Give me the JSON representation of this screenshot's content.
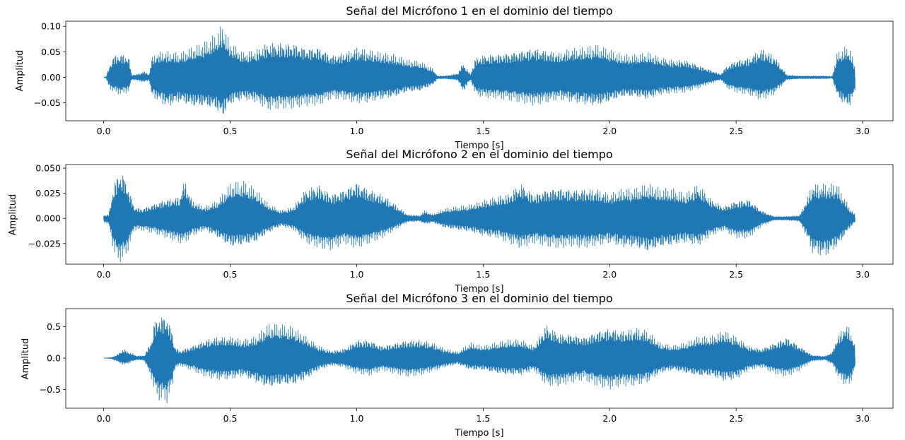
{
  "chart_data": [
    {
      "type": "line",
      "title": "Señal del Micrófono 1 en el dominio del tiempo",
      "xlabel": "Tiempo [s]",
      "ylabel": "Amplitud",
      "xlim": [
        -0.15,
        3.12
      ],
      "ylim": [
        -0.085,
        0.11
      ],
      "xticks": [
        0.0,
        0.5,
        1.0,
        1.5,
        2.0,
        2.5,
        3.0
      ],
      "xtick_labels": [
        "0.0",
        "0.5",
        "1.0",
        "1.5",
        "2.0",
        "2.5",
        "3.0"
      ],
      "yticks": [
        -0.05,
        0.0,
        0.05,
        0.1
      ],
      "ytick_labels": [
        "−0.05",
        "0.00",
        "0.05",
        "0.10"
      ],
      "color": "#1f77b4",
      "x_start": 0.0,
      "x_end": 2.97,
      "envelope": {
        "t": [
          0.0,
          0.01,
          0.02,
          0.04,
          0.07,
          0.1,
          0.11,
          0.13,
          0.16,
          0.18,
          0.19,
          0.21,
          0.25,
          0.3,
          0.35,
          0.4,
          0.44,
          0.47,
          0.5,
          0.55,
          0.6,
          0.65,
          0.7,
          0.75,
          0.8,
          0.85,
          0.9,
          0.95,
          1.0,
          1.05,
          1.1,
          1.15,
          1.2,
          1.25,
          1.3,
          1.32,
          1.35,
          1.4,
          1.42,
          1.45,
          1.47,
          1.5,
          1.55,
          1.6,
          1.65,
          1.7,
          1.75,
          1.8,
          1.85,
          1.9,
          1.95,
          2.0,
          2.05,
          2.1,
          2.15,
          2.2,
          2.25,
          2.3,
          2.35,
          2.4,
          2.44,
          2.46,
          2.5,
          2.55,
          2.6,
          2.65,
          2.7,
          2.75,
          2.8,
          2.85,
          2.88,
          2.9,
          2.93,
          2.95,
          2.97
        ],
        "max": [
          0.0,
          0.002,
          0.02,
          0.045,
          0.048,
          0.042,
          0.005,
          0.006,
          0.012,
          0.006,
          0.04,
          0.05,
          0.052,
          0.048,
          0.06,
          0.07,
          0.085,
          0.105,
          0.07,
          0.05,
          0.055,
          0.07,
          0.07,
          0.07,
          0.06,
          0.062,
          0.045,
          0.05,
          0.06,
          0.055,
          0.05,
          0.045,
          0.035,
          0.032,
          0.018,
          0.003,
          0.003,
          0.008,
          0.03,
          0.006,
          0.04,
          0.045,
          0.048,
          0.05,
          0.055,
          0.06,
          0.055,
          0.05,
          0.058,
          0.06,
          0.065,
          0.055,
          0.045,
          0.045,
          0.05,
          0.04,
          0.035,
          0.035,
          0.025,
          0.015,
          0.006,
          0.022,
          0.035,
          0.04,
          0.058,
          0.045,
          0.005,
          0.003,
          0.003,
          0.003,
          0.002,
          0.05,
          0.06,
          0.06,
          0.02
        ],
        "min": [
          0.0,
          -0.002,
          -0.02,
          -0.03,
          -0.035,
          -0.028,
          -0.005,
          -0.006,
          -0.01,
          -0.006,
          -0.04,
          -0.045,
          -0.06,
          -0.05,
          -0.06,
          -0.06,
          -0.065,
          -0.082,
          -0.055,
          -0.045,
          -0.05,
          -0.065,
          -0.062,
          -0.062,
          -0.055,
          -0.055,
          -0.042,
          -0.045,
          -0.052,
          -0.05,
          -0.045,
          -0.04,
          -0.03,
          -0.028,
          -0.016,
          -0.003,
          -0.003,
          -0.006,
          -0.03,
          -0.005,
          -0.035,
          -0.04,
          -0.042,
          -0.045,
          -0.05,
          -0.055,
          -0.05,
          -0.045,
          -0.05,
          -0.055,
          -0.058,
          -0.05,
          -0.04,
          -0.04,
          -0.045,
          -0.035,
          -0.032,
          -0.03,
          -0.022,
          -0.012,
          -0.005,
          -0.02,
          -0.03,
          -0.035,
          -0.045,
          -0.035,
          -0.005,
          -0.003,
          -0.003,
          -0.003,
          -0.002,
          -0.04,
          -0.058,
          -0.058,
          -0.03
        ]
      }
    },
    {
      "type": "line",
      "title": "Señal del Micrófono 2 en el dominio del tiempo",
      "xlabel": "Tiempo [s]",
      "ylabel": "Amplitud",
      "xlim": [
        -0.15,
        3.12
      ],
      "ylim": [
        -0.0455,
        0.0535
      ],
      "xticks": [
        0.0,
        0.5,
        1.0,
        1.5,
        2.0,
        2.5,
        3.0
      ],
      "xtick_labels": [
        "0.0",
        "0.5",
        "1.0",
        "1.5",
        "2.0",
        "2.5",
        "3.0"
      ],
      "yticks": [
        -0.025,
        0.0,
        0.025,
        0.05
      ],
      "ytick_labels": [
        "−0.025",
        "0.000",
        "0.025",
        "0.050"
      ],
      "color": "#1f77b4",
      "x_start": 0.0,
      "x_end": 2.97,
      "envelope": {
        "t": [
          0.0,
          0.02,
          0.04,
          0.06,
          0.08,
          0.1,
          0.12,
          0.15,
          0.2,
          0.25,
          0.3,
          0.32,
          0.35,
          0.4,
          0.45,
          0.5,
          0.55,
          0.6,
          0.65,
          0.7,
          0.75,
          0.8,
          0.85,
          0.9,
          0.95,
          1.0,
          1.05,
          1.1,
          1.15,
          1.2,
          1.25,
          1.27,
          1.3,
          1.35,
          1.4,
          1.45,
          1.5,
          1.55,
          1.6,
          1.65,
          1.7,
          1.75,
          1.8,
          1.85,
          1.9,
          1.95,
          2.0,
          2.05,
          2.1,
          2.15,
          2.2,
          2.25,
          2.3,
          2.35,
          2.4,
          2.45,
          2.5,
          2.55,
          2.6,
          2.65,
          2.7,
          2.75,
          2.78,
          2.8,
          2.85,
          2.9,
          2.95,
          2.97
        ],
        "max": [
          0.003,
          0.004,
          0.035,
          0.048,
          0.045,
          0.03,
          0.012,
          0.01,
          0.015,
          0.02,
          0.022,
          0.04,
          0.018,
          0.012,
          0.018,
          0.035,
          0.038,
          0.03,
          0.015,
          0.008,
          0.012,
          0.03,
          0.035,
          0.025,
          0.03,
          0.038,
          0.03,
          0.025,
          0.015,
          0.004,
          0.003,
          0.008,
          0.004,
          0.01,
          0.012,
          0.014,
          0.018,
          0.022,
          0.025,
          0.036,
          0.025,
          0.03,
          0.032,
          0.03,
          0.03,
          0.03,
          0.025,
          0.03,
          0.03,
          0.035,
          0.03,
          0.03,
          0.025,
          0.035,
          0.02,
          0.012,
          0.018,
          0.02,
          0.008,
          0.002,
          0.002,
          0.003,
          0.02,
          0.035,
          0.035,
          0.035,
          0.01,
          0.004
        ],
        "max_unused": [],
        "min": [
          -0.004,
          -0.006,
          -0.035,
          -0.044,
          -0.042,
          -0.03,
          -0.012,
          -0.012,
          -0.015,
          -0.02,
          -0.025,
          -0.025,
          -0.018,
          -0.012,
          -0.02,
          -0.03,
          -0.028,
          -0.025,
          -0.015,
          -0.008,
          -0.012,
          -0.025,
          -0.03,
          -0.032,
          -0.025,
          -0.03,
          -0.025,
          -0.02,
          -0.012,
          -0.004,
          -0.003,
          -0.006,
          -0.004,
          -0.01,
          -0.012,
          -0.014,
          -0.018,
          -0.02,
          -0.025,
          -0.03,
          -0.025,
          -0.028,
          -0.03,
          -0.028,
          -0.03,
          -0.028,
          -0.025,
          -0.03,
          -0.03,
          -0.035,
          -0.03,
          -0.028,
          -0.025,
          -0.028,
          -0.018,
          -0.012,
          -0.02,
          -0.02,
          -0.008,
          -0.002,
          -0.002,
          -0.003,
          -0.02,
          -0.035,
          -0.04,
          -0.03,
          -0.01,
          -0.004
        ]
      }
    },
    {
      "type": "line",
      "title": "Señal del Micrófono 3 en el dominio del tiempo",
      "xlabel": "Tiempo [s]",
      "ylabel": "Amplitud",
      "xlim": [
        -0.15,
        3.12
      ],
      "ylim": [
        -0.8,
        0.79
      ],
      "xticks": [
        0.0,
        0.5,
        1.0,
        1.5,
        2.0,
        2.5,
        3.0
      ],
      "xtick_labels": [
        "0.0",
        "0.5",
        "1.0",
        "1.5",
        "2.0",
        "2.5",
        "3.0"
      ],
      "yticks": [
        -0.5,
        0.0,
        0.5
      ],
      "ytick_labels": [
        "−0.5",
        "0.0",
        "0.5"
      ],
      "color": "#1f77b4",
      "x_start": 0.0,
      "x_end": 2.97,
      "envelope": {
        "t": [
          0.0,
          0.03,
          0.05,
          0.08,
          0.1,
          0.13,
          0.16,
          0.19,
          0.2,
          0.22,
          0.25,
          0.27,
          0.28,
          0.3,
          0.35,
          0.4,
          0.45,
          0.5,
          0.55,
          0.6,
          0.65,
          0.7,
          0.75,
          0.8,
          0.85,
          0.9,
          0.95,
          1.0,
          1.05,
          1.1,
          1.15,
          1.2,
          1.25,
          1.3,
          1.35,
          1.4,
          1.45,
          1.5,
          1.55,
          1.6,
          1.65,
          1.7,
          1.75,
          1.8,
          1.85,
          1.9,
          1.95,
          2.0,
          2.05,
          2.1,
          2.15,
          2.2,
          2.25,
          2.3,
          2.35,
          2.4,
          2.45,
          2.5,
          2.55,
          2.6,
          2.65,
          2.7,
          2.75,
          2.8,
          2.85,
          2.88,
          2.9,
          2.93,
          2.95,
          2.97
        ],
        "max": [
          0.0,
          0.01,
          0.05,
          0.15,
          0.1,
          0.04,
          0.04,
          0.3,
          0.6,
          0.7,
          0.7,
          0.45,
          0.2,
          0.12,
          0.2,
          0.3,
          0.35,
          0.35,
          0.3,
          0.35,
          0.55,
          0.55,
          0.5,
          0.35,
          0.2,
          0.12,
          0.15,
          0.3,
          0.3,
          0.2,
          0.25,
          0.3,
          0.3,
          0.25,
          0.15,
          0.1,
          0.25,
          0.2,
          0.25,
          0.3,
          0.3,
          0.2,
          0.55,
          0.4,
          0.4,
          0.35,
          0.45,
          0.5,
          0.45,
          0.5,
          0.45,
          0.25,
          0.2,
          0.25,
          0.35,
          0.35,
          0.45,
          0.35,
          0.2,
          0.15,
          0.25,
          0.35,
          0.2,
          0.05,
          0.03,
          0.1,
          0.35,
          0.55,
          0.5,
          0.2
        ],
        "min": [
          0.0,
          -0.01,
          -0.05,
          -0.12,
          -0.08,
          -0.03,
          -0.04,
          -0.35,
          -0.55,
          -0.68,
          -0.72,
          -0.5,
          -0.2,
          -0.12,
          -0.2,
          -0.3,
          -0.35,
          -0.35,
          -0.3,
          -0.4,
          -0.5,
          -0.45,
          -0.45,
          -0.35,
          -0.2,
          -0.12,
          -0.15,
          -0.25,
          -0.28,
          -0.2,
          -0.25,
          -0.3,
          -0.28,
          -0.22,
          -0.15,
          -0.1,
          -0.2,
          -0.2,
          -0.25,
          -0.28,
          -0.28,
          -0.2,
          -0.45,
          -0.45,
          -0.4,
          -0.35,
          -0.45,
          -0.5,
          -0.45,
          -0.45,
          -0.4,
          -0.25,
          -0.2,
          -0.25,
          -0.3,
          -0.3,
          -0.38,
          -0.35,
          -0.2,
          -0.15,
          -0.25,
          -0.3,
          -0.2,
          -0.05,
          -0.03,
          -0.1,
          -0.3,
          -0.45,
          -0.45,
          -0.15
        ]
      }
    }
  ]
}
